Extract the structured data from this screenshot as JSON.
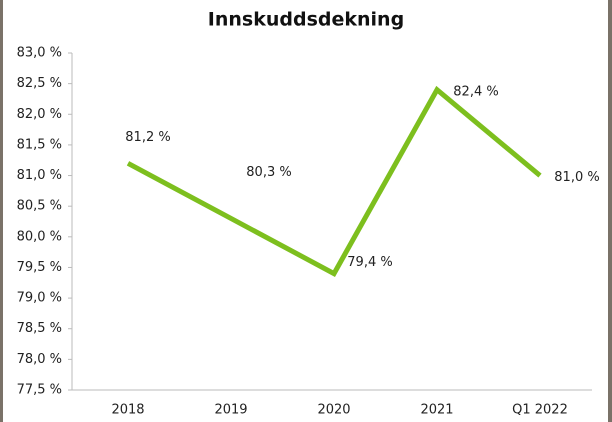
{
  "chart_data": {
    "type": "line",
    "title": "Innskuddsdekning",
    "categories": [
      "2018",
      "2019",
      "2020",
      "2021",
      "Q1 2022"
    ],
    "series": [
      {
        "name": "Innskuddsdekning",
        "color": "#7dbf1e",
        "values": [
          81.2,
          80.3,
          79.4,
          82.4,
          81.0
        ],
        "value_labels": [
          "81,2 %",
          "80,3 %",
          "79,4 %",
          "82,4 %",
          "81,0 %"
        ]
      }
    ],
    "ylim": [
      77.5,
      83.0
    ],
    "yticks": [
      {
        "value": 77.5,
        "label": "77,5 %"
      },
      {
        "value": 78.0,
        "label": "78,0 %"
      },
      {
        "value": 78.5,
        "label": "78,5 %"
      },
      {
        "value": 79.0,
        "label": "79,0 %"
      },
      {
        "value": 79.5,
        "label": "79,5 %"
      },
      {
        "value": 80.0,
        "label": "80,0 %"
      },
      {
        "value": 80.5,
        "label": "80,5 %"
      },
      {
        "value": 81.0,
        "label": "81,0 %"
      },
      {
        "value": 81.5,
        "label": "81,5 %"
      },
      {
        "value": 82.0,
        "label": "82,0 %"
      },
      {
        "value": 82.5,
        "label": "82,5 %"
      },
      {
        "value": 83.0,
        "label": "83,0 %"
      }
    ]
  }
}
